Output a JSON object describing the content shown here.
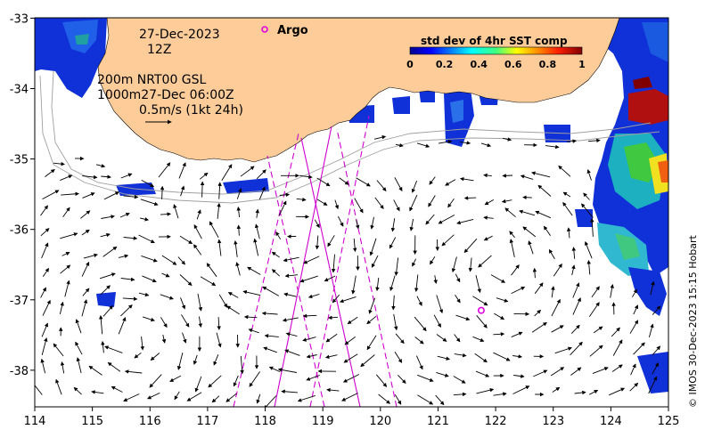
{
  "map": {
    "date": "27-Dec-2023",
    "time": "12Z",
    "line_200m": "200m  NRT00 GSL",
    "line_1000m": "1000m27-Dec 06:00Z",
    "scale_label": "0.5m/s (1kt 24h)",
    "argo_label": "Argo",
    "argo_color": "#e000e0",
    "land_color": "#fdcc99",
    "credit": "© IMOS 30-Dec-2023 15:15 Hobart",
    "x_ticks": [
      "114",
      "115",
      "116",
      "117",
      "118",
      "119",
      "120",
      "121",
      "122",
      "123",
      "124",
      "125"
    ],
    "y_ticks": [
      "-33",
      "-34",
      "-35",
      "-36",
      "-37",
      "-38"
    ],
    "argo_position": {
      "lon": 121.75,
      "lat": -37.15
    }
  },
  "legend": {
    "title": "std dev of 4hr SST comp",
    "ticks": [
      "0",
      "0.2",
      "0.4",
      "0.6",
      "0.8",
      "1"
    ]
  }
}
